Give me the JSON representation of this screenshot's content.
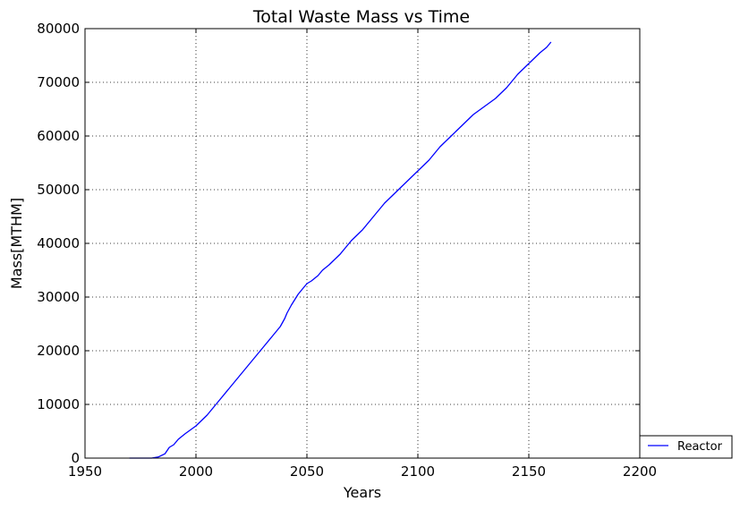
{
  "chart_data": {
    "type": "line",
    "title": "Total Waste Mass vs Time",
    "xlabel": "Years",
    "ylabel": "Mass[MTHM]",
    "xlim": [
      1950,
      2200
    ],
    "ylim": [
      0,
      80000
    ],
    "xticks": [
      1950,
      2000,
      2050,
      2100,
      2150,
      2200
    ],
    "xtick_labels": [
      "1950",
      "2000",
      "2050",
      "2100",
      "2150",
      "2200"
    ],
    "yticks": [
      0,
      10000,
      20000,
      30000,
      40000,
      50000,
      60000,
      70000,
      80000
    ],
    "ytick_labels": [
      "0",
      "10000",
      "20000",
      "30000",
      "40000",
      "50000",
      "60000",
      "70000",
      "80000"
    ],
    "grid": true,
    "legend_position": "outside-bottom-right",
    "series": [
      {
        "name": "Reactor",
        "color": "#0000ff",
        "x": [
          1970,
          1975,
          1980,
          1983,
          1986,
          1988,
          1990,
          1992,
          1995,
          2000,
          2005,
          2010,
          2015,
          2020,
          2025,
          2030,
          2035,
          2038,
          2040,
          2041,
          2043,
          2046,
          2048,
          2050,
          2052,
          2055,
          2057,
          2060,
          2065,
          2070,
          2075,
          2080,
          2085,
          2090,
          2095,
          2100,
          2105,
          2110,
          2115,
          2120,
          2125,
          2130,
          2135,
          2140,
          2145,
          2150,
          2155,
          2158,
          2160
        ],
        "y": [
          0,
          0,
          0,
          200,
          800,
          2000,
          2500,
          3500,
          4500,
          6000,
          8000,
          10500,
          13000,
          15500,
          18000,
          20500,
          23000,
          24500,
          26000,
          27000,
          28500,
          30500,
          31500,
          32500,
          33000,
          34000,
          35000,
          36000,
          38000,
          40500,
          42500,
          45000,
          47500,
          49500,
          51500,
          53500,
          55500,
          58000,
          60000,
          62000,
          64000,
          65500,
          67000,
          69000,
          71500,
          73500,
          75500,
          76500,
          77500
        ]
      }
    ]
  }
}
